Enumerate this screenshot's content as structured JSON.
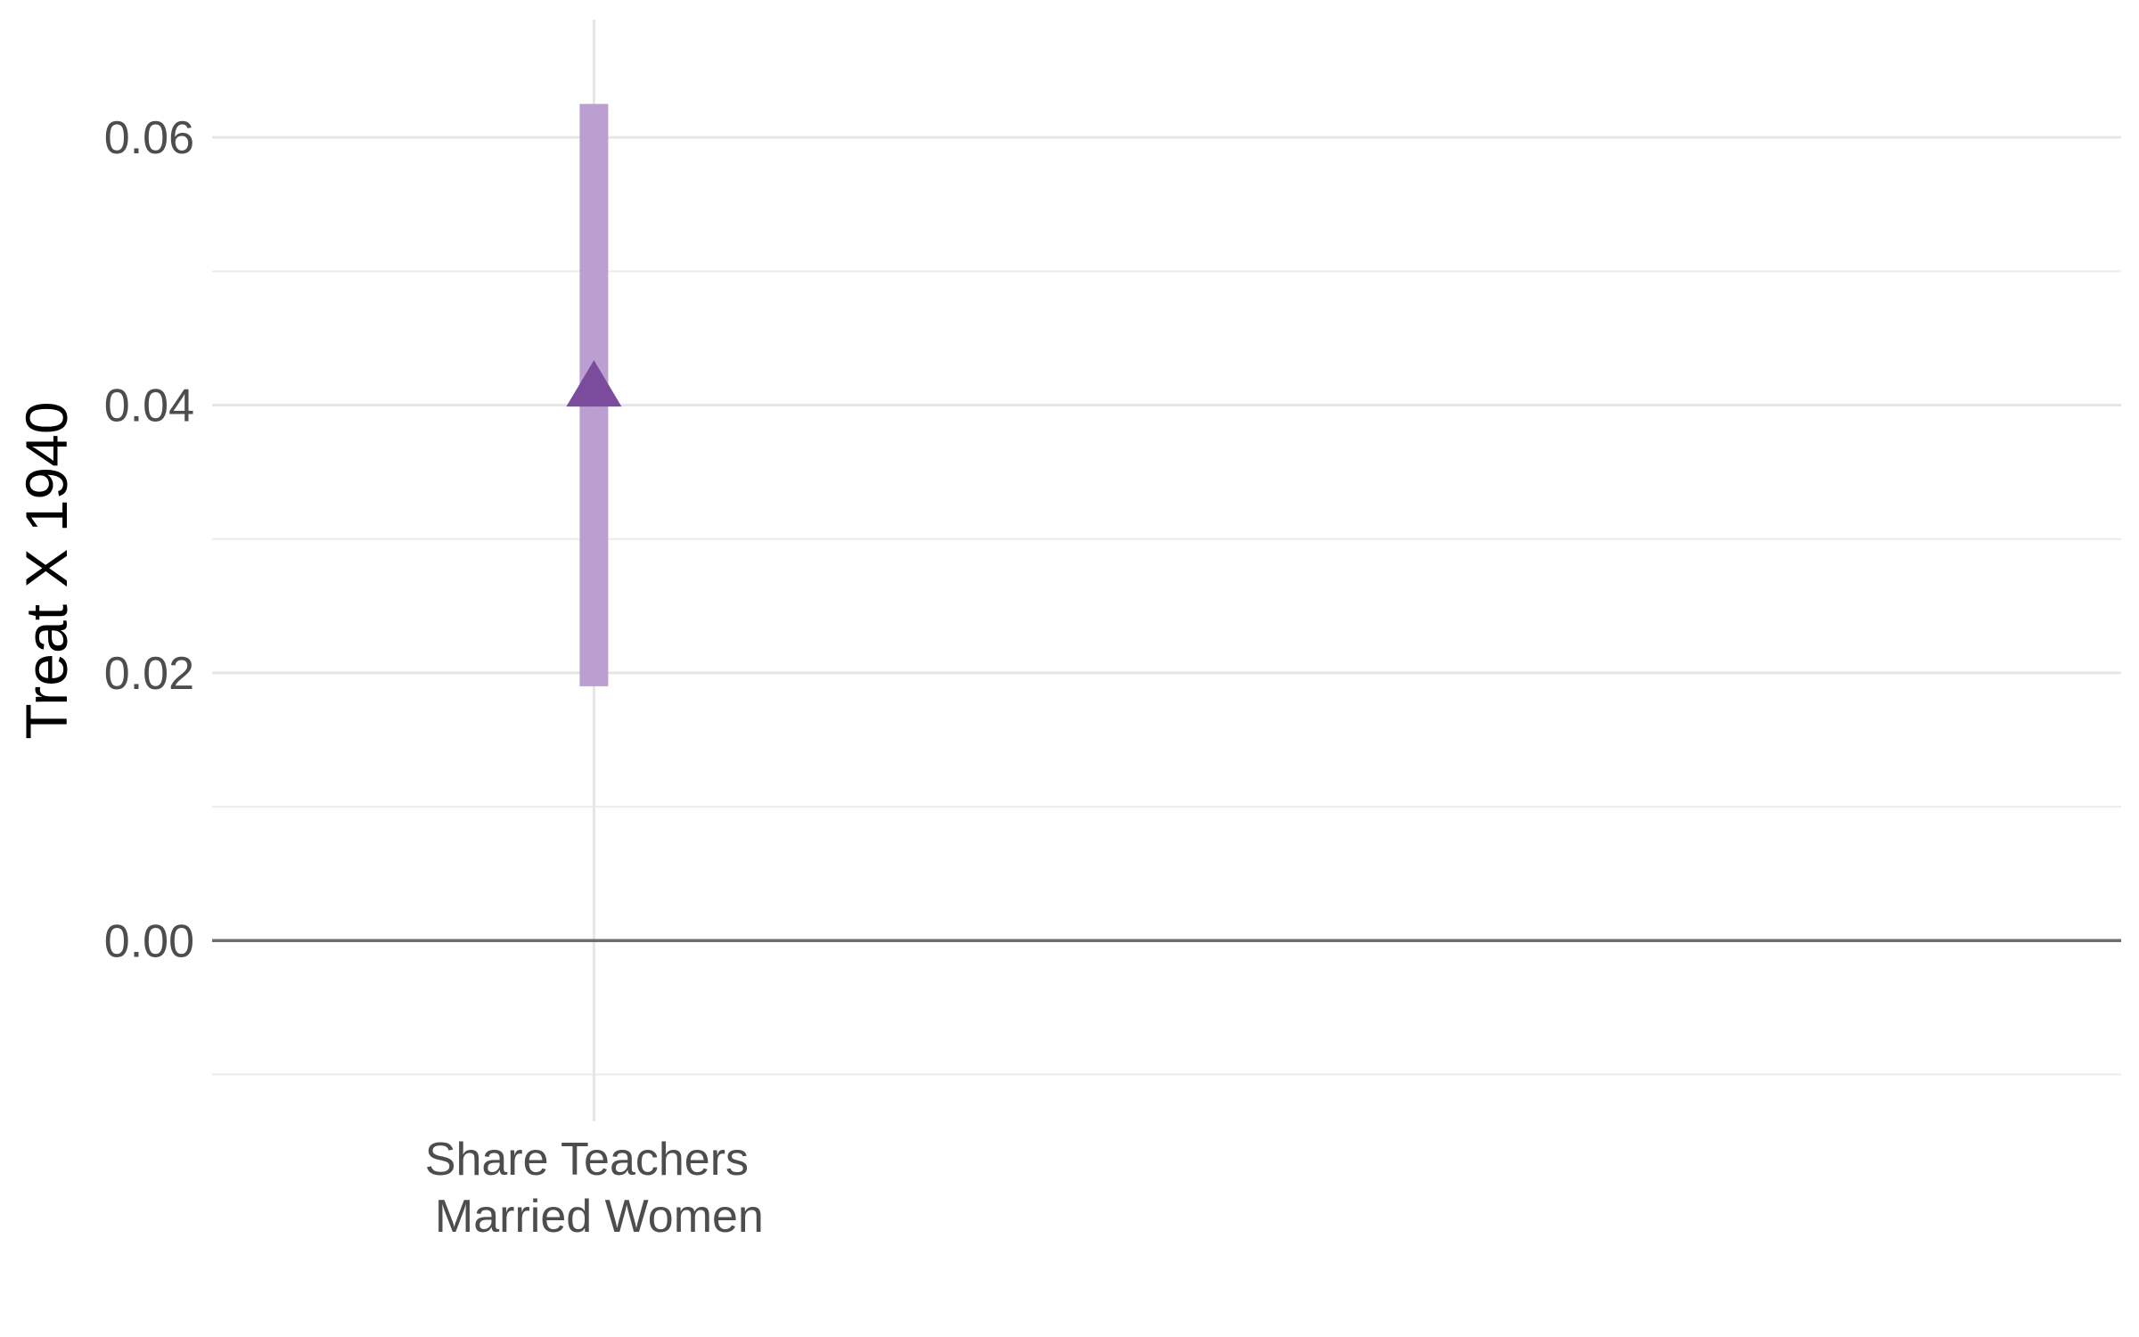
{
  "chart_data": {
    "type": "pointrange",
    "title": "",
    "xlabel": "",
    "ylabel": "Treat X 1940",
    "categories": [
      {
        "lines": [
          "Share Teachers",
          "Married Women"
        ]
      }
    ],
    "series": [
      {
        "name": "Share Teachers Married Women",
        "estimate": 0.041,
        "ci_low": 0.019,
        "ci_high": 0.0625,
        "marker": "triangle",
        "color": "#7b4c9e",
        "bar_color": "#b69acd"
      }
    ],
    "ylim": [
      -0.0135,
      0.0688
    ],
    "yticks": [
      0.0,
      0.02,
      0.04,
      0.06
    ],
    "ytick_labels": [
      "0.00",
      "0.02",
      "0.04",
      "0.06"
    ],
    "yminor": [
      -0.01,
      0.01,
      0.03,
      0.05
    ],
    "reference_line": 0.0,
    "x_domain": [
      0.5,
      3.0
    ],
    "grid": true
  }
}
